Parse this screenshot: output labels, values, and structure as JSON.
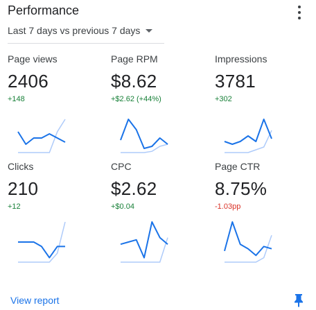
{
  "header": {
    "title": "Performance",
    "menu_icon": "more-vert-icon"
  },
  "period": {
    "label": "Last 7 days vs previous 7 days"
  },
  "metrics": [
    {
      "label": "Page views",
      "value": "2406",
      "delta": "+148",
      "trend": "up",
      "current": [
        5,
        2,
        3.5,
        3.5,
        4.5,
        3.5,
        2.5
      ],
      "previous": [
        0,
        0,
        0,
        0,
        0,
        5,
        8
      ]
    },
    {
      "label": "Page RPM",
      "value": "$8.62",
      "delta": "+$2.62 (+44%)",
      "trend": "up",
      "current": [
        3,
        8,
        5.5,
        1,
        1.5,
        3.5,
        2
      ],
      "previous": [
        0,
        0,
        0,
        0,
        0.3,
        1.5,
        2
      ]
    },
    {
      "label": "Impressions",
      "value": "3781",
      "delta": "+302",
      "trend": "up",
      "current": [
        2,
        1.5,
        2,
        3,
        2,
        6,
        2.5
      ],
      "previous": [
        0,
        0,
        0,
        0,
        0.5,
        1,
        4
      ]
    },
    {
      "label": "Clicks",
      "value": "210",
      "delta": "+12",
      "trend": "up",
      "current": [
        4.5,
        4.5,
        4.5,
        3.5,
        1,
        3.5,
        3.5
      ],
      "previous": [
        0,
        0,
        0,
        0,
        0,
        2,
        9
      ]
    },
    {
      "label": "CPC",
      "value": "$2.62",
      "delta": "+$0.04",
      "trend": "up",
      "current": [
        4,
        4.5,
        5,
        1,
        9,
        5.5,
        4
      ],
      "previous": [
        0,
        0,
        0,
        0,
        0,
        0,
        5.5
      ]
    },
    {
      "label": "Page CTR",
      "value": "8.75%",
      "delta": "-1.03pp",
      "trend": "down",
      "current": [
        2.5,
        9,
        4,
        3,
        1.5,
        3.5,
        3
      ],
      "previous": [
        0,
        0,
        0,
        0,
        0,
        1,
        6
      ]
    }
  ],
  "colors": {
    "current": "#1a73e8",
    "previous": "#aecbfa",
    "positive": "#188038",
    "negative": "#d93025",
    "link": "#1a73e8"
  },
  "footer": {
    "view_report": "View report",
    "pin_icon": "pin-icon"
  }
}
